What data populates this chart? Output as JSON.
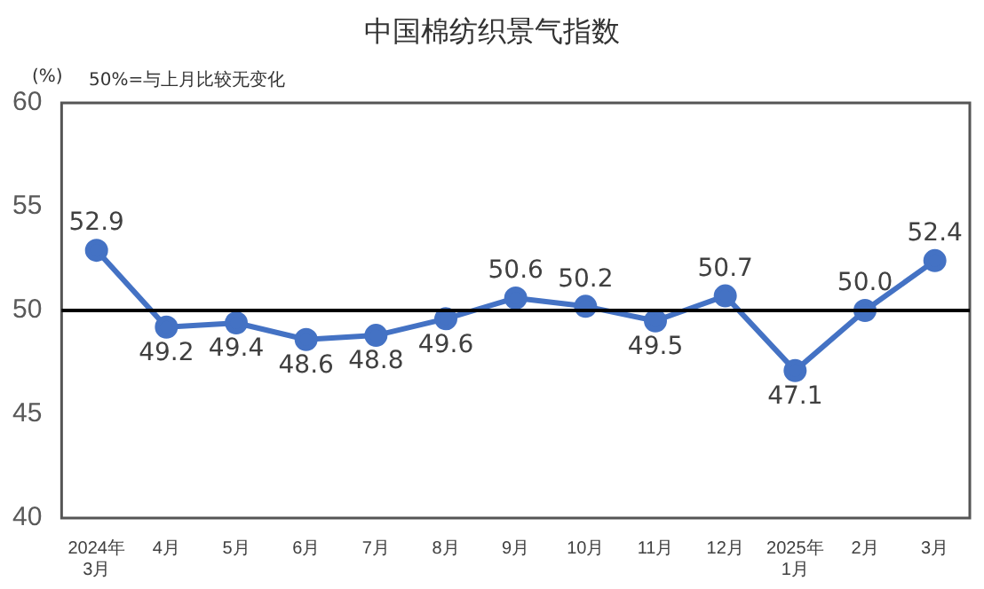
{
  "chart_data": {
    "type": "line",
    "title": "中国棉纺织景气指数",
    "ylabel": "(%)",
    "annotations": [
      "50%=与上月比较无变化"
    ],
    "categories": [
      "2024年\n3月",
      "4月",
      "5月",
      "6月",
      "7月",
      "8月",
      "9月",
      "10月",
      "11月",
      "12月",
      "2025年\n1月",
      "2月",
      "3月"
    ],
    "series": [
      {
        "color": "#4472c4",
        "values": [
          52.9,
          49.2,
          49.4,
          48.6,
          48.8,
          49.6,
          50.6,
          50.2,
          49.5,
          50.7,
          47.1,
          50.0,
          52.4
        ],
        "value_labels": [
          "52.9",
          "49.2",
          "49.4",
          "48.6",
          "48.8",
          "49.6",
          "50.6",
          "50.2",
          "49.5",
          "50.7",
          "47.1",
          "50.0",
          "52.4"
        ]
      }
    ],
    "ylim": [
      40,
      60
    ],
    "yticks": [
      40,
      45,
      50,
      55,
      60
    ],
    "grid": false,
    "legend": false,
    "marker": "circle",
    "line_style": "solid",
    "ref_lines": [
      {
        "axis": "y",
        "value": 50,
        "color": "#000000"
      }
    ]
  }
}
